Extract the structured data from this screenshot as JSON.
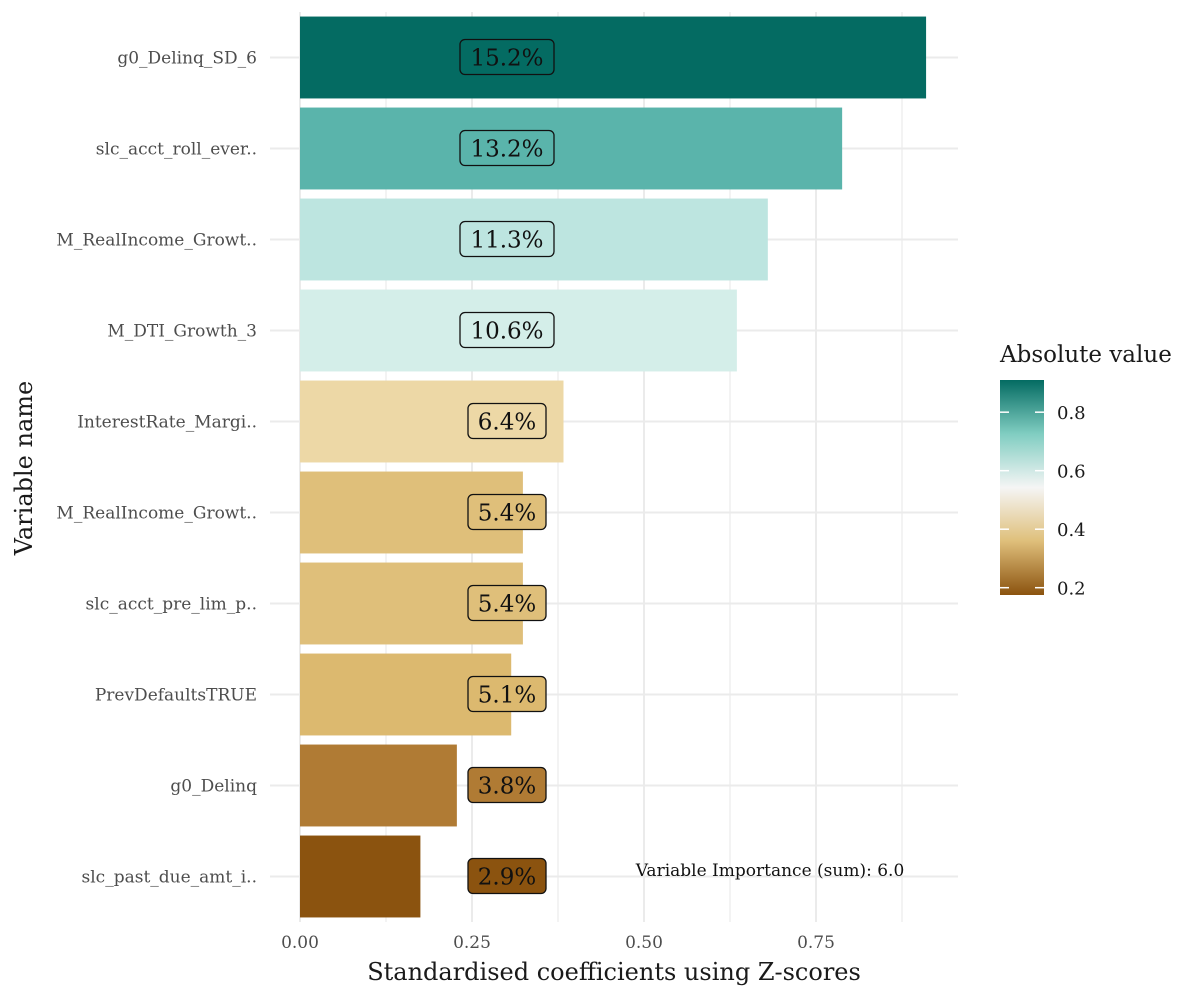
{
  "chart_data": {
    "type": "bar",
    "orientation": "horizontal",
    "xlabel": "Standardised coefficients using Z-scores",
    "ylabel": "Variable name",
    "xlim": [
      0,
      0.955
    ],
    "x_ticks": [
      "0.00",
      "0.25",
      "0.50",
      "0.75"
    ],
    "x_tick_values": [
      0,
      0.25,
      0.5,
      0.75
    ],
    "grid": true,
    "categories": [
      "g0_Delinq_SD_6",
      "slc_acct_roll_ever..",
      "M_RealIncome_Growt..",
      "M_DTI_Growth_3",
      "InterestRate_Margi..",
      "M_RealIncome_Growt..",
      "slc_acct_pre_lim_p..",
      "PrevDefaultsTRUE",
      "g0_Delinq",
      "slc_past_due_amt_i.."
    ],
    "values": [
      0.91,
      0.788,
      0.68,
      0.635,
      0.383,
      0.324,
      0.324,
      0.307,
      0.228,
      0.175
    ],
    "data_labels": [
      "15.2%",
      "13.2%",
      "11.3%",
      "10.6%",
      "6.4%",
      "5.4%",
      "5.4%",
      "5.1%",
      "3.8%",
      "2.9%"
    ],
    "colors": [
      "#046b62",
      "#5ab4ab",
      "#bde5e0",
      "#d4eee9",
      "#edd8a6",
      "#dfbf7a",
      "#dfbf7a",
      "#dcb96f",
      "#b07b34",
      "#8b530f"
    ],
    "legend": {
      "title": "Absolute value",
      "position": "right",
      "range": [
        0.175,
        0.91
      ],
      "ticks": [
        "0.2",
        "0.4",
        "0.6",
        "0.8"
      ],
      "tick_values": [
        0.2,
        0.4,
        0.6,
        0.8
      ],
      "gradient_colors": [
        "#8b530f",
        "#dfbf7a",
        "#f5f5f5",
        "#80cdc1",
        "#046b62"
      ]
    },
    "annotation": "Variable Importance (sum): 6.0"
  }
}
